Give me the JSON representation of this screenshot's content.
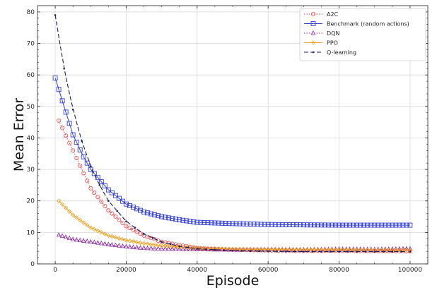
{
  "chart_data": {
    "type": "line",
    "title": "",
    "xlabel": "Episode",
    "ylabel": "Mean Error",
    "xlim": [
      -5000,
      105000
    ],
    "ylim": [
      0,
      82
    ],
    "x_ticks": [
      "0",
      "20000",
      "40000",
      "60000",
      "80000",
      "100000"
    ],
    "y_ticks": [
      "0",
      "10",
      "20",
      "30",
      "40",
      "50",
      "60",
      "70",
      "80"
    ],
    "grid": true,
    "legend_position": "top-right",
    "series": [
      {
        "name": "A2C",
        "color": "#e8474c",
        "marker": "circle",
        "line_style": "dotted",
        "x": [
          1000,
          5000,
          10000,
          15000,
          20000,
          25000,
          30000,
          35000,
          40000,
          50000,
          60000,
          70000,
          80000,
          90000,
          100000
        ],
        "y": [
          45.5,
          36,
          24,
          17,
          12,
          9,
          7,
          6,
          5,
          4.5,
          4.3,
          4.2,
          4.2,
          4.1,
          4.0
        ]
      },
      {
        "name": "Benchmark (random actions)",
        "color": "#3340d0",
        "marker": "square",
        "line_style": "solid",
        "x": [
          0,
          2500,
          5000,
          7500,
          10000,
          15000,
          20000,
          25000,
          30000,
          35000,
          40000,
          50000,
          60000,
          70000,
          80000,
          90000,
          100000
        ],
        "y": [
          59,
          50,
          41,
          35,
          30,
          23.5,
          19,
          16.5,
          15,
          14,
          13.2,
          12.8,
          12.5,
          12.4,
          12.3,
          12.3,
          12.3
        ]
      },
      {
        "name": "DQN",
        "color": "#8a2a9e",
        "marker": "triangle",
        "line_style": "dotted",
        "x": [
          1000,
          5000,
          10000,
          15000,
          20000,
          25000,
          30000,
          40000,
          50000,
          60000,
          70000,
          80000,
          90000,
          100000
        ],
        "y": [
          9.2,
          7.8,
          7.0,
          6.2,
          5.5,
          5.0,
          4.8,
          4.6,
          4.5,
          4.6,
          4.5,
          4.7,
          4.6,
          4.8
        ]
      },
      {
        "name": "PPO",
        "color": "#f0a020",
        "marker": "diamond",
        "line_style": "solid",
        "x": [
          1000,
          5000,
          10000,
          15000,
          20000,
          25000,
          30000,
          40000,
          50000,
          60000,
          70000,
          80000,
          90000,
          100000
        ],
        "y": [
          20,
          15.5,
          11.5,
          9,
          7.5,
          6.5,
          5.8,
          5.0,
          4.7,
          4.6,
          4.5,
          4.5,
          4.4,
          4.4
        ]
      },
      {
        "name": "Q-learning",
        "color": "#1a2060",
        "marker": "dot",
        "line_style": "dashed",
        "x": [
          0,
          2500,
          5000,
          7500,
          10000,
          12500,
          15000,
          20000,
          25000,
          30000,
          35000,
          40000,
          50000,
          60000,
          70000,
          80000,
          90000,
          100000
        ],
        "y": [
          79,
          62,
          49,
          39,
          31,
          25,
          20,
          13.5,
          9.5,
          7,
          5.6,
          4.8,
          4.2,
          4.0,
          3.9,
          3.9,
          3.9,
          3.9
        ]
      }
    ]
  }
}
